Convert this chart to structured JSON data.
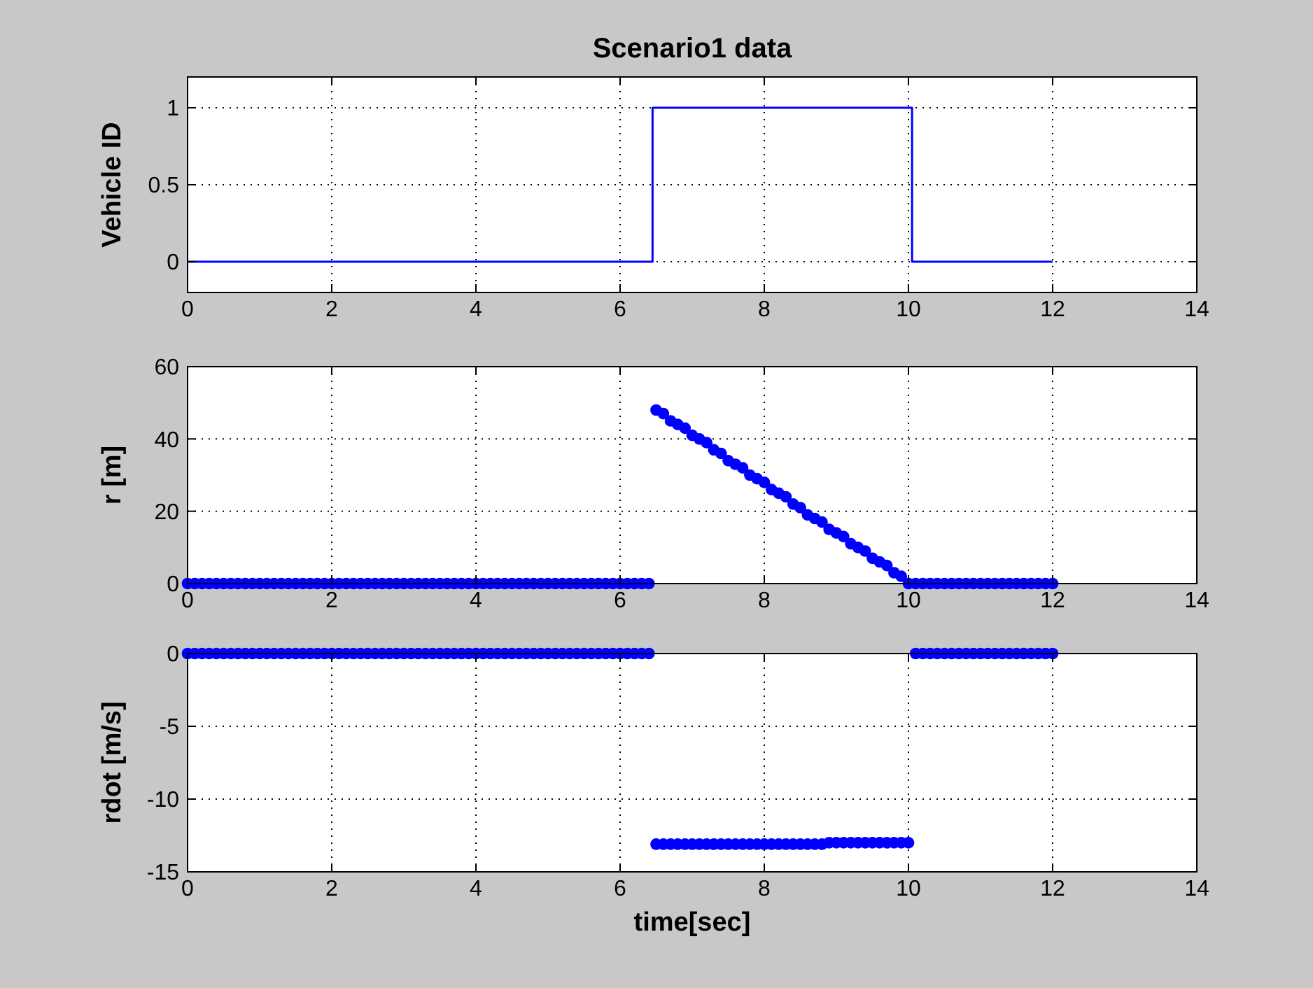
{
  "chart_data": [
    {
      "type": "line",
      "title": "Scenario1 data",
      "ylabel": "Vehicle ID",
      "x": [
        0,
        6.45,
        6.45,
        10.05,
        10.05,
        12
      ],
      "series": [
        {
          "color": "#0000ff",
          "values": [
            0,
            0,
            1,
            1,
            0,
            0
          ]
        }
      ],
      "xlim": [
        0,
        14
      ],
      "ylim": [
        -0.2,
        1.2
      ],
      "xticks": [
        0,
        2,
        4,
        6,
        8,
        10,
        12,
        14
      ],
      "yticks": [
        0,
        0.5,
        1
      ],
      "grid": true
    },
    {
      "type": "scatter",
      "ylabel": "r [m]",
      "marker": "circle",
      "x": [
        0,
        0.1,
        0.2,
        0.3,
        0.4,
        0.5,
        0.6,
        0.7,
        0.8,
        0.9,
        1,
        1.1,
        1.2,
        1.3,
        1.4,
        1.5,
        1.6,
        1.7,
        1.8,
        1.9,
        2,
        2.1,
        2.2,
        2.3,
        2.4,
        2.5,
        2.6,
        2.7,
        2.8,
        2.9,
        3,
        3.1,
        3.2,
        3.3,
        3.4,
        3.5,
        3.6,
        3.7,
        3.8,
        3.9,
        4,
        4.1,
        4.2,
        4.3,
        4.4,
        4.5,
        4.6,
        4.7,
        4.8,
        4.9,
        5,
        5.1,
        5.2,
        5.3,
        5.4,
        5.5,
        5.6,
        5.7,
        5.8,
        5.9,
        6,
        6.1,
        6.2,
        6.3,
        6.4,
        6.5,
        6.6,
        6.7,
        6.8,
        6.9,
        7,
        7.1,
        7.2,
        7.3,
        7.4,
        7.5,
        7.6,
        7.7,
        7.8,
        7.9,
        8,
        8.1,
        8.2,
        8.3,
        8.4,
        8.5,
        8.6,
        8.7,
        8.8,
        8.9,
        9,
        9.1,
        9.2,
        9.3,
        9.4,
        9.5,
        9.6,
        9.7,
        9.8,
        9.9,
        10,
        10.1,
        10.2,
        10.3,
        10.4,
        10.5,
        10.6,
        10.7,
        10.8,
        10.9,
        11,
        11.1,
        11.2,
        11.3,
        11.4,
        11.5,
        11.6,
        11.7,
        11.8,
        11.9,
        12
      ],
      "series": [
        {
          "color": "#0000ff",
          "values": [
            0,
            0,
            0,
            0,
            0,
            0,
            0,
            0,
            0,
            0,
            0,
            0,
            0,
            0,
            0,
            0,
            0,
            0,
            0,
            0,
            0,
            0,
            0,
            0,
            0,
            0,
            0,
            0,
            0,
            0,
            0,
            0,
            0,
            0,
            0,
            0,
            0,
            0,
            0,
            0,
            0,
            0,
            0,
            0,
            0,
            0,
            0,
            0,
            0,
            0,
            0,
            0,
            0,
            0,
            0,
            0,
            0,
            0,
            0,
            0,
            0,
            0,
            0,
            0,
            0,
            48,
            47,
            45,
            44,
            43,
            41,
            40,
            39,
            37,
            36,
            34,
            33,
            32,
            30,
            29,
            28,
            26,
            25,
            24,
            22,
            21,
            19,
            18,
            17,
            15,
            14,
            13,
            11,
            10,
            9,
            7,
            6,
            5,
            3,
            2,
            0,
            0,
            0,
            0,
            0,
            0,
            0,
            0,
            0,
            0,
            0,
            0,
            0,
            0,
            0,
            0,
            0,
            0,
            0,
            0,
            0
          ]
        }
      ],
      "xlim": [
        0,
        14
      ],
      "ylim": [
        0,
        60
      ],
      "xticks": [
        0,
        2,
        4,
        6,
        8,
        10,
        12,
        14
      ],
      "yticks": [
        0,
        20,
        40,
        60
      ],
      "grid": true
    },
    {
      "type": "scatter",
      "ylabel": "rdot [m/s]",
      "xlabel": "time[sec]",
      "marker": "circle",
      "x": [
        0,
        0.1,
        0.2,
        0.3,
        0.4,
        0.5,
        0.6,
        0.7,
        0.8,
        0.9,
        1,
        1.1,
        1.2,
        1.3,
        1.4,
        1.5,
        1.6,
        1.7,
        1.8,
        1.9,
        2,
        2.1,
        2.2,
        2.3,
        2.4,
        2.5,
        2.6,
        2.7,
        2.8,
        2.9,
        3,
        3.1,
        3.2,
        3.3,
        3.4,
        3.5,
        3.6,
        3.7,
        3.8,
        3.9,
        4,
        4.1,
        4.2,
        4.3,
        4.4,
        4.5,
        4.6,
        4.7,
        4.8,
        4.9,
        5,
        5.1,
        5.2,
        5.3,
        5.4,
        5.5,
        5.6,
        5.7,
        5.8,
        5.9,
        6,
        6.1,
        6.2,
        6.3,
        6.4,
        6.5,
        6.6,
        6.7,
        6.8,
        6.9,
        7,
        7.1,
        7.2,
        7.3,
        7.4,
        7.5,
        7.6,
        7.7,
        7.8,
        7.9,
        8,
        8.1,
        8.2,
        8.3,
        8.4,
        8.5,
        8.6,
        8.7,
        8.8,
        8.9,
        9,
        9.1,
        9.2,
        9.3,
        9.4,
        9.5,
        9.6,
        9.7,
        9.8,
        9.9,
        10,
        10.1,
        10.2,
        10.3,
        10.4,
        10.5,
        10.6,
        10.7,
        10.8,
        10.9,
        11,
        11.1,
        11.2,
        11.3,
        11.4,
        11.5,
        11.6,
        11.7,
        11.8,
        11.9,
        12
      ],
      "series": [
        {
          "color": "#0000ff",
          "values": [
            0,
            0,
            0,
            0,
            0,
            0,
            0,
            0,
            0,
            0,
            0,
            0,
            0,
            0,
            0,
            0,
            0,
            0,
            0,
            0,
            0,
            0,
            0,
            0,
            0,
            0,
            0,
            0,
            0,
            0,
            0,
            0,
            0,
            0,
            0,
            0,
            0,
            0,
            0,
            0,
            0,
            0,
            0,
            0,
            0,
            0,
            0,
            0,
            0,
            0,
            0,
            0,
            0,
            0,
            0,
            0,
            0,
            0,
            0,
            0,
            0,
            0,
            0,
            0,
            0,
            -13.1,
            -13.1,
            -13.1,
            -13.1,
            -13.1,
            -13.1,
            -13.1,
            -13.1,
            -13.1,
            -13.1,
            -13.1,
            -13.1,
            -13.1,
            -13.1,
            -13.1,
            -13.1,
            -13.1,
            -13.1,
            -13.1,
            -13.1,
            -13.1,
            -13.1,
            -13.1,
            -13.1,
            -13,
            -13,
            -13,
            -13,
            -13,
            -13,
            -13,
            -13,
            -13,
            -13,
            -13,
            -13,
            0,
            0,
            0,
            0,
            0,
            0,
            0,
            0,
            0,
            0,
            0,
            0,
            0,
            0,
            0,
            0,
            0,
            0,
            0,
            0
          ]
        }
      ],
      "xlim": [
        0,
        14
      ],
      "ylim": [
        -15,
        0
      ],
      "xticks": [
        0,
        2,
        4,
        6,
        8,
        10,
        12,
        14
      ],
      "yticks": [
        0,
        -5,
        -10,
        -15
      ],
      "grid": true
    }
  ]
}
